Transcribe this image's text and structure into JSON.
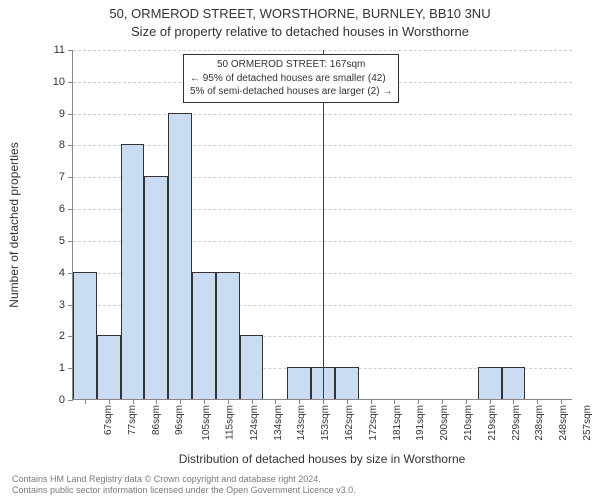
{
  "title_line1": "50, ORMEROD STREET, WORSTHORNE, BURNLEY, BB10 3NU",
  "title_line2": "Size of property relative to detached houses in Worsthorne",
  "ylabel": "Number of detached properties",
  "xlabel": "Distribution of detached houses by size in Worsthorne",
  "chart": {
    "type": "bar",
    "ylim": [
      0,
      11
    ],
    "ytick_step": 1,
    "bar_color": "#cadcf2",
    "bar_border": "#333333",
    "bar_width_ratio": 1.0,
    "grid_color": "#cfcfcf",
    "background": "#ffffff",
    "x_labels": [
      "67sqm",
      "77sqm",
      "86sqm",
      "96sqm",
      "105sqm",
      "115sqm",
      "124sqm",
      "134sqm",
      "143sqm",
      "153sqm",
      "162sqm",
      "172sqm",
      "181sqm",
      "191sqm",
      "200sqm",
      "210sqm",
      "219sqm",
      "229sqm",
      "238sqm",
      "248sqm",
      "257sqm"
    ],
    "values": [
      4,
      2,
      8,
      7,
      9,
      4,
      4,
      2,
      0,
      1,
      1,
      1,
      0,
      0,
      0,
      0,
      0,
      1,
      1,
      0,
      0
    ],
    "marker": {
      "position_between_index": [
        10,
        11
      ],
      "color": "#cc0000",
      "width": 1
    },
    "annotation": {
      "lines": [
        "50 ORMEROD STREET: 167sqm",
        "← 95% of detached houses are smaller (42)",
        "5% of semi-detached houses are larger (2) →"
      ],
      "border_color": "#333333",
      "fontsize": 10
    }
  },
  "footer_line1": "Contains HM Land Registry data © Crown copyright and database right 2024.",
  "footer_line2": "Contains public sector information licensed under the Open Government Licence v3.0."
}
